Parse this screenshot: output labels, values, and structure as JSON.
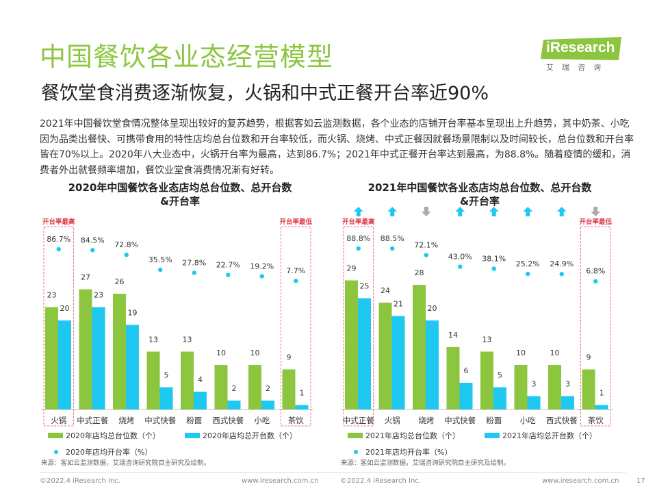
{
  "page": {
    "title": "中国餐饮各业态经营模型",
    "subtitle": "餐饮堂食消费逐渐恢复，火锅和中式正餐开台率近90%",
    "intro": "2021年中国餐饮堂食情况整体呈现出较好的复苏趋势，根据客如云监测数据，各个业态的店铺开台率基本呈现出上升趋势，其中奶茶、小吃因为品类出餐快、可携带食用的特性店均总台位数和开台率较低，而火锅、烧烤、中式正餐因就餐场景限制以及时间较长，总台位数和开台率皆在70%以上。2020年八大业态中，火锅开台率为最高，达到86.7%；2021年中式正餐开台率达到最高，为88.8%。随着疫情的缓和，消费者外出就餐频率增加，餐饮业堂食消费情况渐有好转。",
    "logo": "iResearch",
    "logo_sub": "艾瑞咨询",
    "footer_left_1": "©2022.4 iResearch Inc.",
    "footer_right_1": "www.iresearch.com.cn",
    "footer_left_2": "©2022.4 iResearch Inc.",
    "footer_right_2": "www.iresearch.com.cn",
    "page_number": "17",
    "colors": {
      "green": "#8cc63f",
      "cyan": "#1ec8f0",
      "dot": "#1ec8f0",
      "red_dash": "#e8707a",
      "up": "#1ec8f0",
      "down": "#aaaaaa"
    }
  },
  "chart_data": [
    {
      "type": "bar",
      "title_line1": "2020年中国餐饮各业态店均总台位数、总开台数",
      "title_line2": "&开台率",
      "categories": [
        "火锅",
        "中式正餐",
        "烧烤",
        "中式快餐",
        "粉面",
        "西式快餐",
        "小吃",
        "茶饮"
      ],
      "series": [
        {
          "name": "2020年店均总台位数（个）",
          "values": [
            23,
            27,
            26,
            13,
            13,
            10,
            10,
            9
          ]
        },
        {
          "name": "2020年店均总开台数（个）",
          "values": [
            20,
            23,
            19,
            5,
            4,
            2,
            2,
            1
          ]
        }
      ],
      "rate": {
        "name": "2020年店均开台率（%）",
        "values": [
          86.7,
          84.5,
          72.8,
          35.5,
          27.8,
          22.7,
          19.2,
          7.7
        ],
        "labels": [
          "86.7%",
          "84.5%",
          "72.8%",
          "35.5%",
          "27.8%",
          "22.7%",
          "19.2%",
          "7.7%"
        ]
      },
      "highlight_high": {
        "label": "开台率最高",
        "index": 0
      },
      "highlight_low": {
        "label": "开台率最低",
        "index": 7
      },
      "ylim": [
        0,
        30
      ],
      "source": "来源：客如云监测数据，艾瑞咨询研究院自主研究及绘制。"
    },
    {
      "type": "bar",
      "title_line1": "2021年中国餐饮各业态店均总台位数、总开台数",
      "title_line2": "&开台率",
      "categories": [
        "中式正餐",
        "火锅",
        "烧烤",
        "中式快餐",
        "粉面",
        "小吃",
        "西式快餐",
        "茶饮"
      ],
      "series": [
        {
          "name": "2021年店均总台位数（个）",
          "values": [
            29,
            24,
            28,
            14,
            13,
            10,
            10,
            9
          ]
        },
        {
          "name": "2021年店均总开台数（个）",
          "values": [
            25,
            21,
            20,
            6,
            5,
            3,
            3,
            1
          ]
        }
      ],
      "rate": {
        "name": "2021年店均开台率（%）",
        "values": [
          88.8,
          88.5,
          72.1,
          43.0,
          38.1,
          25.2,
          24.9,
          6.8
        ],
        "labels": [
          "88.8%",
          "88.5%",
          "72.1%",
          "43.0%",
          "38.1%",
          "25.2%",
          "24.9%",
          "6.8%"
        ]
      },
      "trend": [
        "up",
        "up",
        "down",
        "up",
        "up",
        "up",
        "up",
        "down"
      ],
      "highlight_high": {
        "label": "开台率最高",
        "index": 0
      },
      "highlight_low": {
        "label": "开台率最低",
        "index": 7
      },
      "ylim": [
        0,
        30
      ],
      "source": "来源：客如云监测数据，艾瑞咨询研究院自主研究及绘制。"
    }
  ]
}
